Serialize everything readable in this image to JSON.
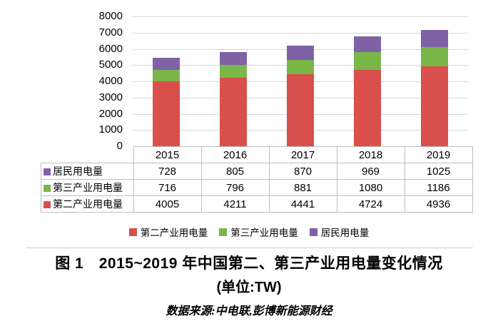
{
  "figure": {
    "caption_title": "图 1　2015~2019 年中国第二、第三产业用电量变化情况",
    "caption_unit": "(单位:TW)",
    "caption_source": "数据来源:中电联,彭博新能源财经"
  },
  "colors": {
    "secondary_industry": "#d94f4b",
    "tertiary_industry": "#7ab648",
    "residential": "#7e62a5",
    "gridline": "#d6d6d6",
    "table_border": "#bfbfbf"
  },
  "chart_data": {
    "type": "bar",
    "stacked": true,
    "title": "图 1 2015~2019 年中国第二、第三产业用电量变化情况",
    "unit": "TW",
    "categories": [
      "2015",
      "2016",
      "2017",
      "2018",
      "2019"
    ],
    "series": [
      {
        "name": "第二产业用电量",
        "color": "#d94f4b",
        "values": [
          4005,
          4211,
          4441,
          4724,
          4936
        ]
      },
      {
        "name": "第三产业用电量",
        "color": "#7ab648",
        "values": [
          716,
          796,
          881,
          1080,
          1186
        ]
      },
      {
        "name": "居民用电量",
        "color": "#7e62a5",
        "values": [
          728,
          805,
          870,
          969,
          1025
        ]
      }
    ],
    "table_row_order": [
      "居民用电量",
      "第三产业用电量",
      "第二产业用电量"
    ],
    "legend_order": [
      "第二产业用电量",
      "第三产业用电量",
      "居民用电量"
    ],
    "ylim": [
      0,
      8000
    ],
    "yticks": [
      0,
      1000,
      2000,
      3000,
      4000,
      5000,
      6000,
      7000,
      8000
    ],
    "grid": true,
    "legend_position": "bottom",
    "data_table": true
  }
}
